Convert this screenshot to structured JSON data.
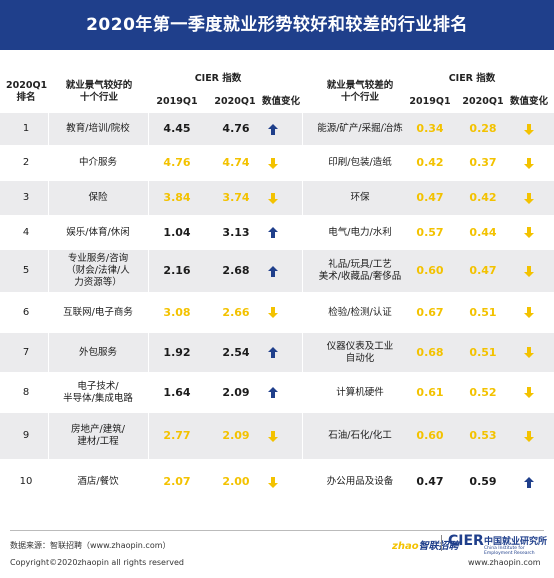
{
  "title": "2020年第一季度就业形势较好和较差的行业排名",
  "header": {
    "rank_label": "2020Q1\n排名",
    "good_label": "就业景气较好的\n十个行业",
    "bad_label": "就业景气较差的\n十个行业",
    "cier_label": "CIER 指数",
    "q2019": "2019Q1",
    "q2020": "2020Q1",
    "change": "数值变化"
  },
  "colors": {
    "title_bg": "#1f3f8b",
    "up_arrow": "#1f3f8b",
    "down_arrow": "#f3c200",
    "highlight_value": "#f3c200",
    "shade": "#ebebed"
  },
  "chart_data": {
    "type": "table",
    "columns": [
      "2020Q1排名",
      "就业景气较好的十个行业",
      "2019Q1",
      "2020Q1",
      "数值变化",
      "就业景气较差的十个行业",
      "2019Q1",
      "2020Q1",
      "数值变化"
    ],
    "rows": [
      {
        "rank": "1",
        "good": "教育/培训/院校",
        "g19": "4.45",
        "g20": "4.76",
        "g_dir": "up",
        "g_hl": false,
        "bad": "能源/矿产/采掘/冶炼",
        "b19": "0.34",
        "b20": "0.28",
        "b_dir": "down",
        "b_hl": true
      },
      {
        "rank": "2",
        "good": "中介服务",
        "g19": "4.76",
        "g20": "4.74",
        "g_dir": "down",
        "g_hl": true,
        "bad": "印刷/包装/造纸",
        "b19": "0.42",
        "b20": "0.37",
        "b_dir": "down",
        "b_hl": true
      },
      {
        "rank": "3",
        "good": "保险",
        "g19": "3.84",
        "g20": "3.74",
        "g_dir": "down",
        "g_hl": true,
        "bad": "环保",
        "b19": "0.47",
        "b20": "0.42",
        "b_dir": "down",
        "b_hl": true
      },
      {
        "rank": "4",
        "good": "娱乐/体育/休闲",
        "g19": "1.04",
        "g20": "3.13",
        "g_dir": "up",
        "g_hl": false,
        "bad": "电气/电力/水利",
        "b19": "0.57",
        "b20": "0.44",
        "b_dir": "down",
        "b_hl": true
      },
      {
        "rank": "5",
        "good": "专业服务/咨询\n（财会/法律/人\n力资源等）",
        "g19": "2.16",
        "g20": "2.68",
        "g_dir": "up",
        "g_hl": false,
        "bad": "礼品/玩具/工艺\n美术/收藏品/奢侈品",
        "b19": "0.60",
        "b20": "0.47",
        "b_dir": "down",
        "b_hl": true
      },
      {
        "rank": "6",
        "good": "互联网/电子商务",
        "g19": "3.08",
        "g20": "2.66",
        "g_dir": "down",
        "g_hl": true,
        "bad": "检验/检测/认证",
        "b19": "0.67",
        "b20": "0.51",
        "b_dir": "down",
        "b_hl": true
      },
      {
        "rank": "7",
        "good": "外包服务",
        "g19": "1.92",
        "g20": "2.54",
        "g_dir": "up",
        "g_hl": false,
        "bad": "仪器仪表及工业\n自动化",
        "b19": "0.68",
        "b20": "0.51",
        "b_dir": "down",
        "b_hl": true
      },
      {
        "rank": "8",
        "good": "电子技术/\n半导体/集成电路",
        "g19": "1.64",
        "g20": "2.09",
        "g_dir": "up",
        "g_hl": false,
        "bad": "计算机硬件",
        "b19": "0.61",
        "b20": "0.52",
        "b_dir": "down",
        "b_hl": true
      },
      {
        "rank": "9",
        "good": "房地产/建筑/\n建材/工程",
        "g19": "2.77",
        "g20": "2.09",
        "g_dir": "down",
        "g_hl": true,
        "bad": "石油/石化/化工",
        "b19": "0.60",
        "b20": "0.53",
        "b_dir": "down",
        "b_hl": true
      },
      {
        "rank": "10",
        "good": "酒店/餐饮",
        "g19": "2.07",
        "g20": "2.00",
        "g_dir": "down",
        "g_hl": true,
        "bad": "办公用品及设备",
        "b19": "0.47",
        "b20": "0.59",
        "b_dir": "up",
        "b_hl": false
      }
    ]
  },
  "footer": {
    "source": "数据来源：智联招聘（www.zhaopin.com）",
    "copyright": "Copyright©2020zhaopin all rights reserved",
    "url": "www.zhaopin.com",
    "logo_zp_a": "zhao",
    "logo_zp_b": "智联招聘",
    "logo_cier": "CIER",
    "logo_cier_cn": "中国就业研究所",
    "logo_cier_en": "China Institute for Employment Research"
  }
}
